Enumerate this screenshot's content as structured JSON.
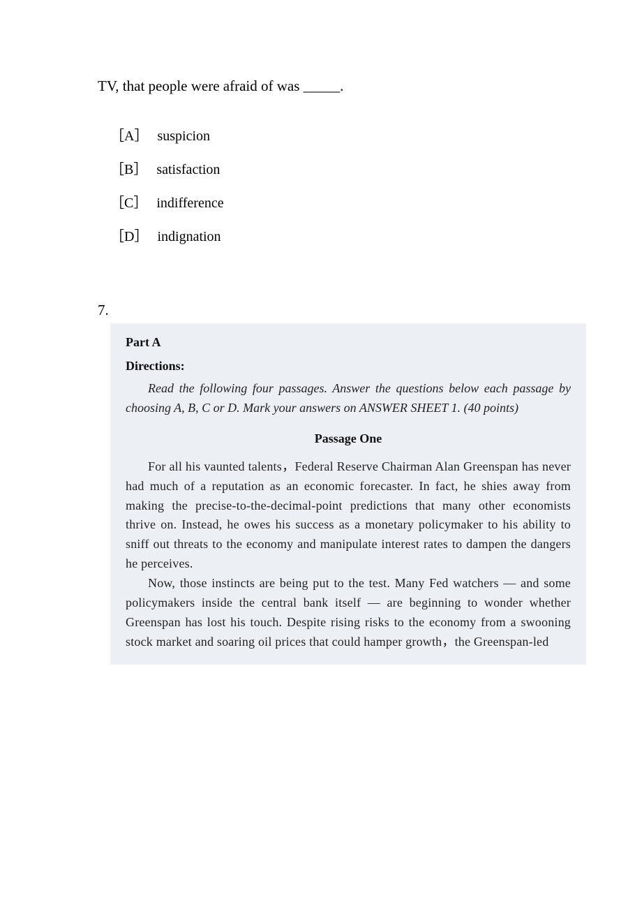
{
  "question6": {
    "text": "TV, that people were afraid of was _____.",
    "options": [
      {
        "label": "［A］",
        "text": "suspicion"
      },
      {
        "label": "［B］",
        "text": "satisfaction"
      },
      {
        "label": "［C］",
        "text": "indifference"
      },
      {
        "label": "［D］",
        "text": "indignation"
      }
    ]
  },
  "question7": {
    "number": "7.",
    "part": "Part A",
    "directionsLabel": "Directions:",
    "directionsText": "Read the following four passages. Answer the questions below each passage by choosing A, B, C or D. Mark your answers on ANSWER SHEET 1. (40 points)",
    "passageTitle": "Passage One",
    "paragraphs": [
      "For all his vaunted talents，Federal Reserve Chairman Alan Greenspan has never had much of a reputation as an economic forecaster. In fact, he shies away from making the precise-to-the-decimal-point predictions that many other economists thrive on. Instead, he owes his success as a monetary policymaker to his ability to sniff out threats to the economy and manipulate interest rates to dampen the dangers he perceives.",
      "Now, those instincts are being put to the test. Many Fed watchers — and some policymakers inside the central bank itself — are beginning to wonder whether Greenspan has lost his touch. Despite rising risks to the economy from a swooning stock market and soaring oil prices that could hamper growth，the Greenspan-led"
    ]
  },
  "styles": {
    "background": "#ffffff",
    "passageBoxBackground": "#ecf0f4",
    "textColor": "#000000",
    "passageTextColor": "#222222",
    "bodyFontSize": 21,
    "optionFontSize": 20,
    "passageFontSize": 18
  }
}
